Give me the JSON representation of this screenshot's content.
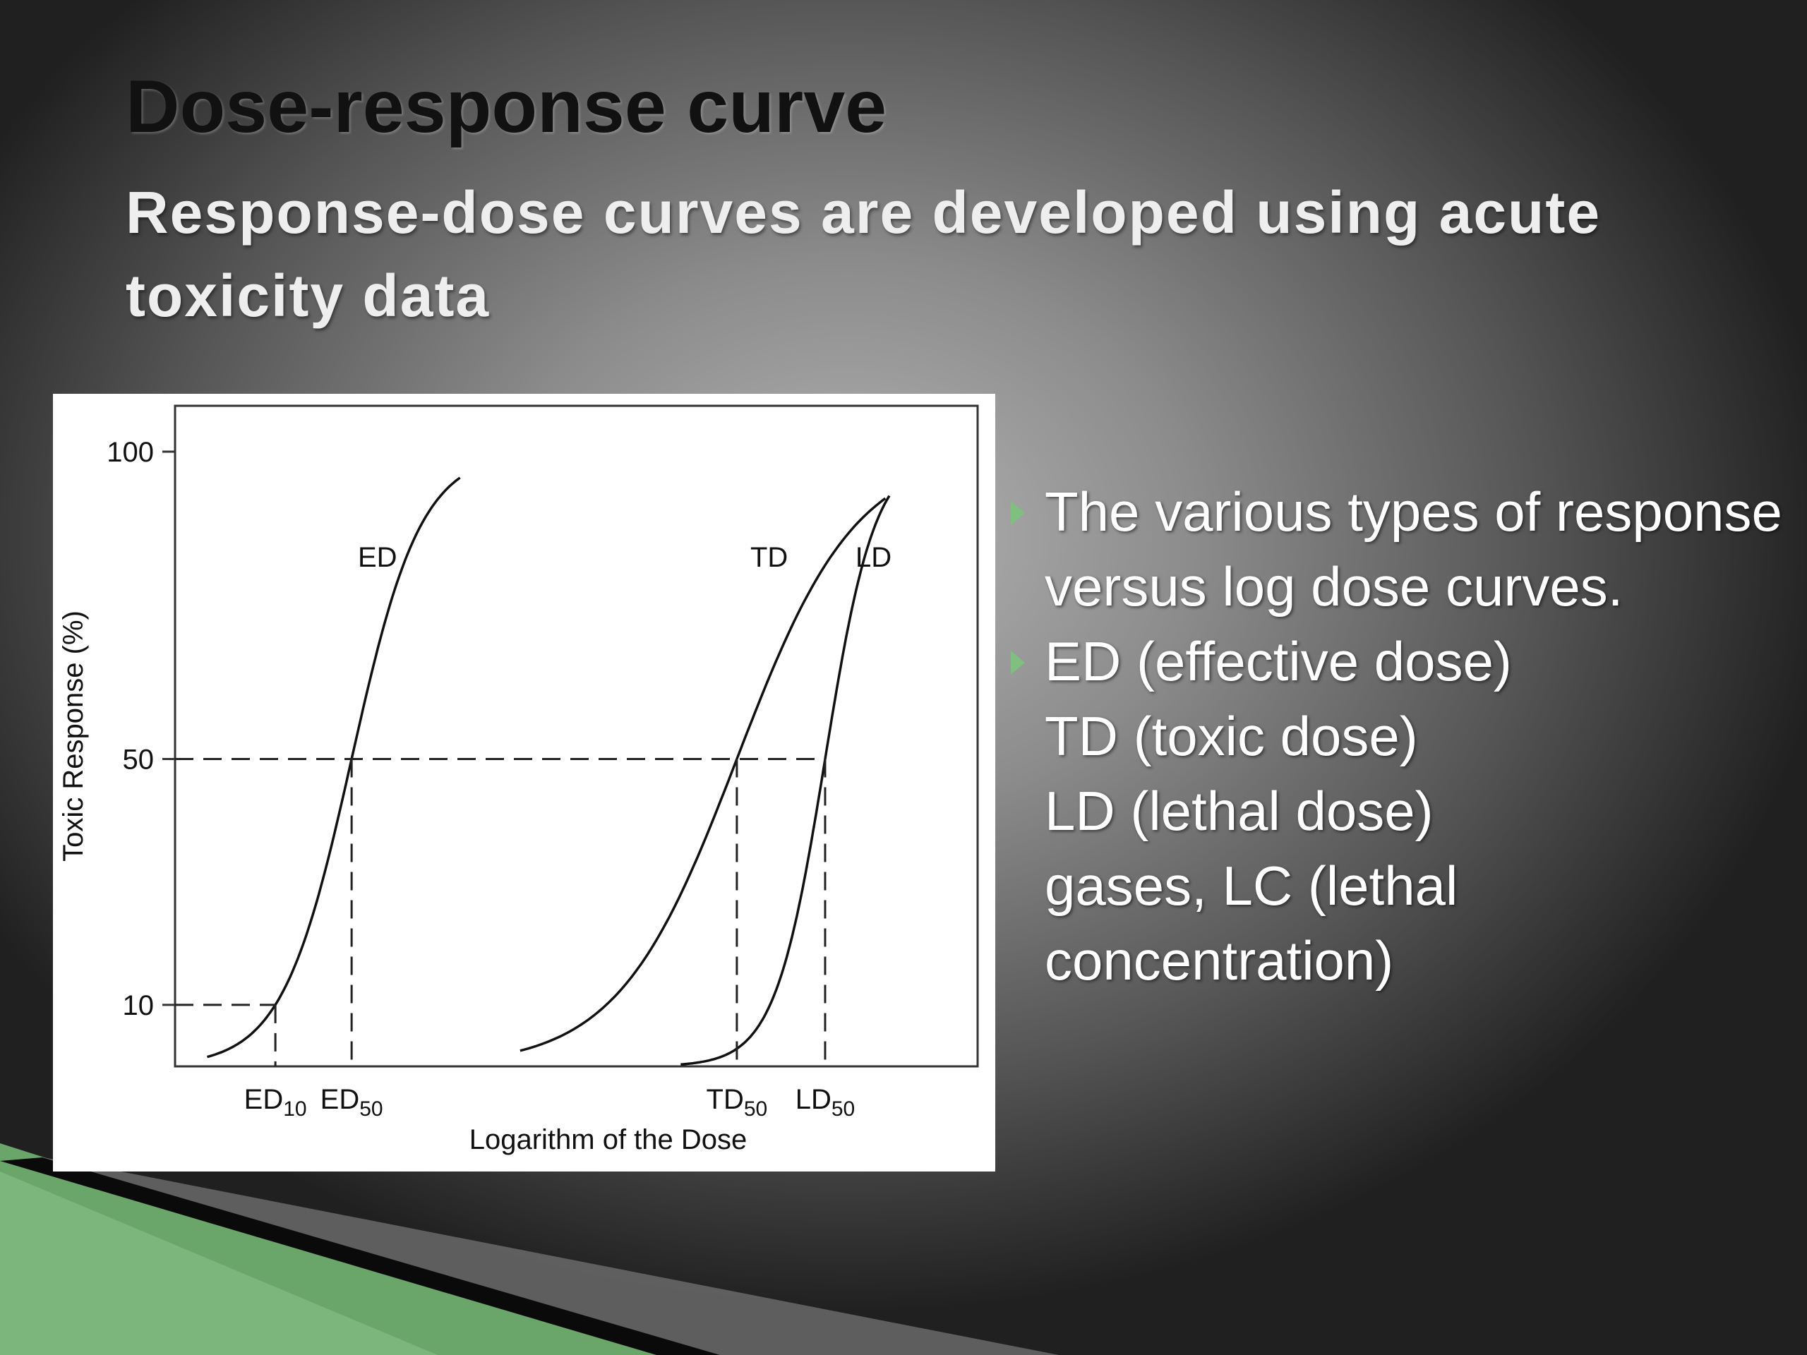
{
  "slide": {
    "title": "Dose-response curve",
    "subtitle": "Response-dose curves are developed using acute toxicity data",
    "bullets": [
      {
        "text": "The various types of response versus log dose curves.",
        "marker": true
      },
      {
        "text": "ED (effective dose)",
        "marker": true
      },
      {
        "text": "TD (toxic dose)",
        "marker": false
      },
      {
        "text": "LD (lethal dose)",
        "marker": false
      },
      {
        "text": "gases, LC (lethal concentration)",
        "marker": false
      }
    ],
    "colors": {
      "accent": "#7fbf7f",
      "text": "#ffffff",
      "title": "#111111"
    }
  },
  "chart_data": {
    "type": "line",
    "xlabel": "Logarithm of the Dose",
    "ylabel": "Toxic Response (%)",
    "ylim": [
      0,
      100
    ],
    "y_ticks": [
      10,
      50,
      100
    ],
    "grid": false,
    "series": [
      {
        "name": "ED",
        "ed10": 0.125,
        "ed50": 0.22,
        "x_start": 0.04,
        "x_end": 0.355
      },
      {
        "name": "TD",
        "ed50": 0.7,
        "x_start": 0.43,
        "x_end": 0.885
      },
      {
        "name": "LD",
        "ed50": 0.81,
        "x_start": 0.63,
        "x_end": 0.89
      }
    ],
    "reference_lines": [
      {
        "orientation": "horizontal",
        "y": 50
      },
      {
        "orientation": "horizontal",
        "y": 10
      }
    ],
    "x_markers": [
      {
        "base": "ED",
        "sub": "10",
        "x": 0.125
      },
      {
        "base": "ED",
        "sub": "50",
        "x": 0.22
      },
      {
        "base": "TD",
        "sub": "50",
        "x": 0.7
      },
      {
        "base": "LD",
        "sub": "50",
        "x": 0.81
      }
    ]
  }
}
